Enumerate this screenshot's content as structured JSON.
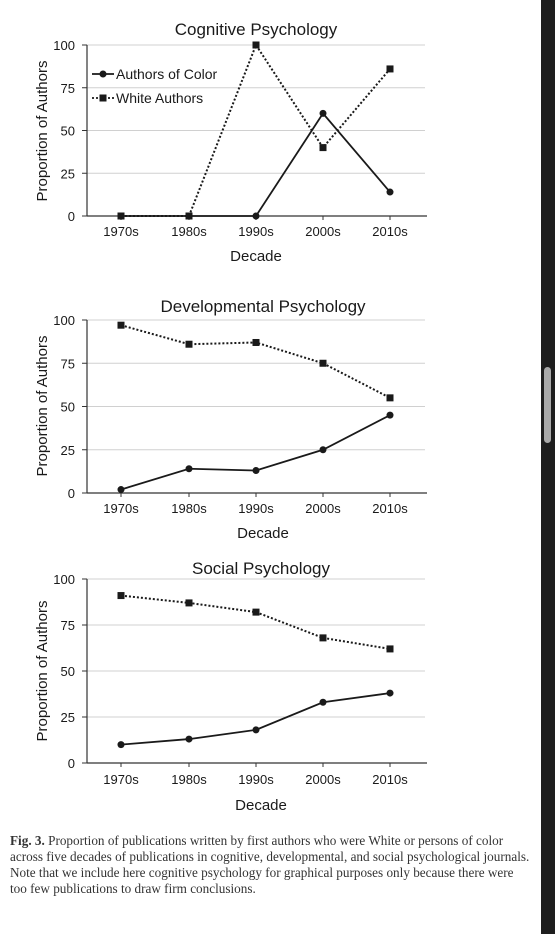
{
  "chart_data": [
    {
      "type": "line",
      "title": "Cognitive Psychology",
      "xlabel": "Decade",
      "ylabel": "Proportion of Authors",
      "categories": [
        "1970s",
        "1980s",
        "1990s",
        "2000s",
        "2010s"
      ],
      "yticks": [
        0,
        25,
        50,
        75,
        100
      ],
      "ylim": [
        0,
        100
      ],
      "grid": true,
      "legend_position": "top-left",
      "series": [
        {
          "name": "Authors of Color",
          "style": "solid",
          "marker": "circle",
          "values": [
            0,
            0,
            0,
            60,
            14
          ]
        },
        {
          "name": "White Authors",
          "style": "dotted",
          "marker": "square",
          "values": [
            0,
            0,
            100,
            40,
            86
          ]
        }
      ]
    },
    {
      "type": "line",
      "title": "Developmental Psychology",
      "xlabel": "Decade",
      "ylabel": "Proportion of Authors",
      "categories": [
        "1970s",
        "1980s",
        "1990s",
        "2000s",
        "2010s"
      ],
      "yticks": [
        0,
        25,
        50,
        75,
        100
      ],
      "ylim": [
        0,
        100
      ],
      "grid": true,
      "series": [
        {
          "style": "solid",
          "marker": "circle",
          "values": [
            2,
            14,
            13,
            25,
            45
          ]
        },
        {
          "style": "dotted",
          "marker": "square",
          "values": [
            97,
            86,
            87,
            75,
            55
          ]
        }
      ]
    },
    {
      "type": "line",
      "title": "Social Psychology",
      "xlabel": "Decade",
      "ylabel": "Proportion of Authors",
      "categories": [
        "1970s",
        "1980s",
        "1990s",
        "2000s",
        "2010s"
      ],
      "yticks": [
        0,
        25,
        50,
        75,
        100
      ],
      "ylim": [
        0,
        100
      ],
      "grid": true,
      "series": [
        {
          "style": "solid",
          "marker": "circle",
          "values": [
            10,
            13,
            18,
            33,
            38
          ]
        },
        {
          "style": "dotted",
          "marker": "square",
          "values": [
            91,
            87,
            82,
            68,
            62
          ]
        }
      ]
    }
  ],
  "caption": {
    "label": "Fig. 3.",
    "text": "Proportion of publications written by first authors who were White or persons of color across five decades of publications in cognitive, developmental, and social psychological journals. Note that we include here cognitive psychology for graphical purposes only because there were too few publications to draw firm conclusions."
  },
  "colors": {
    "line": "#1a1a1a",
    "grid": "#d0d0d0",
    "axis": "#333333",
    "caption_text": "#333333",
    "scrollbar_track": "#1e1e1e",
    "scrollbar_thumb": "#a9a9a9"
  }
}
